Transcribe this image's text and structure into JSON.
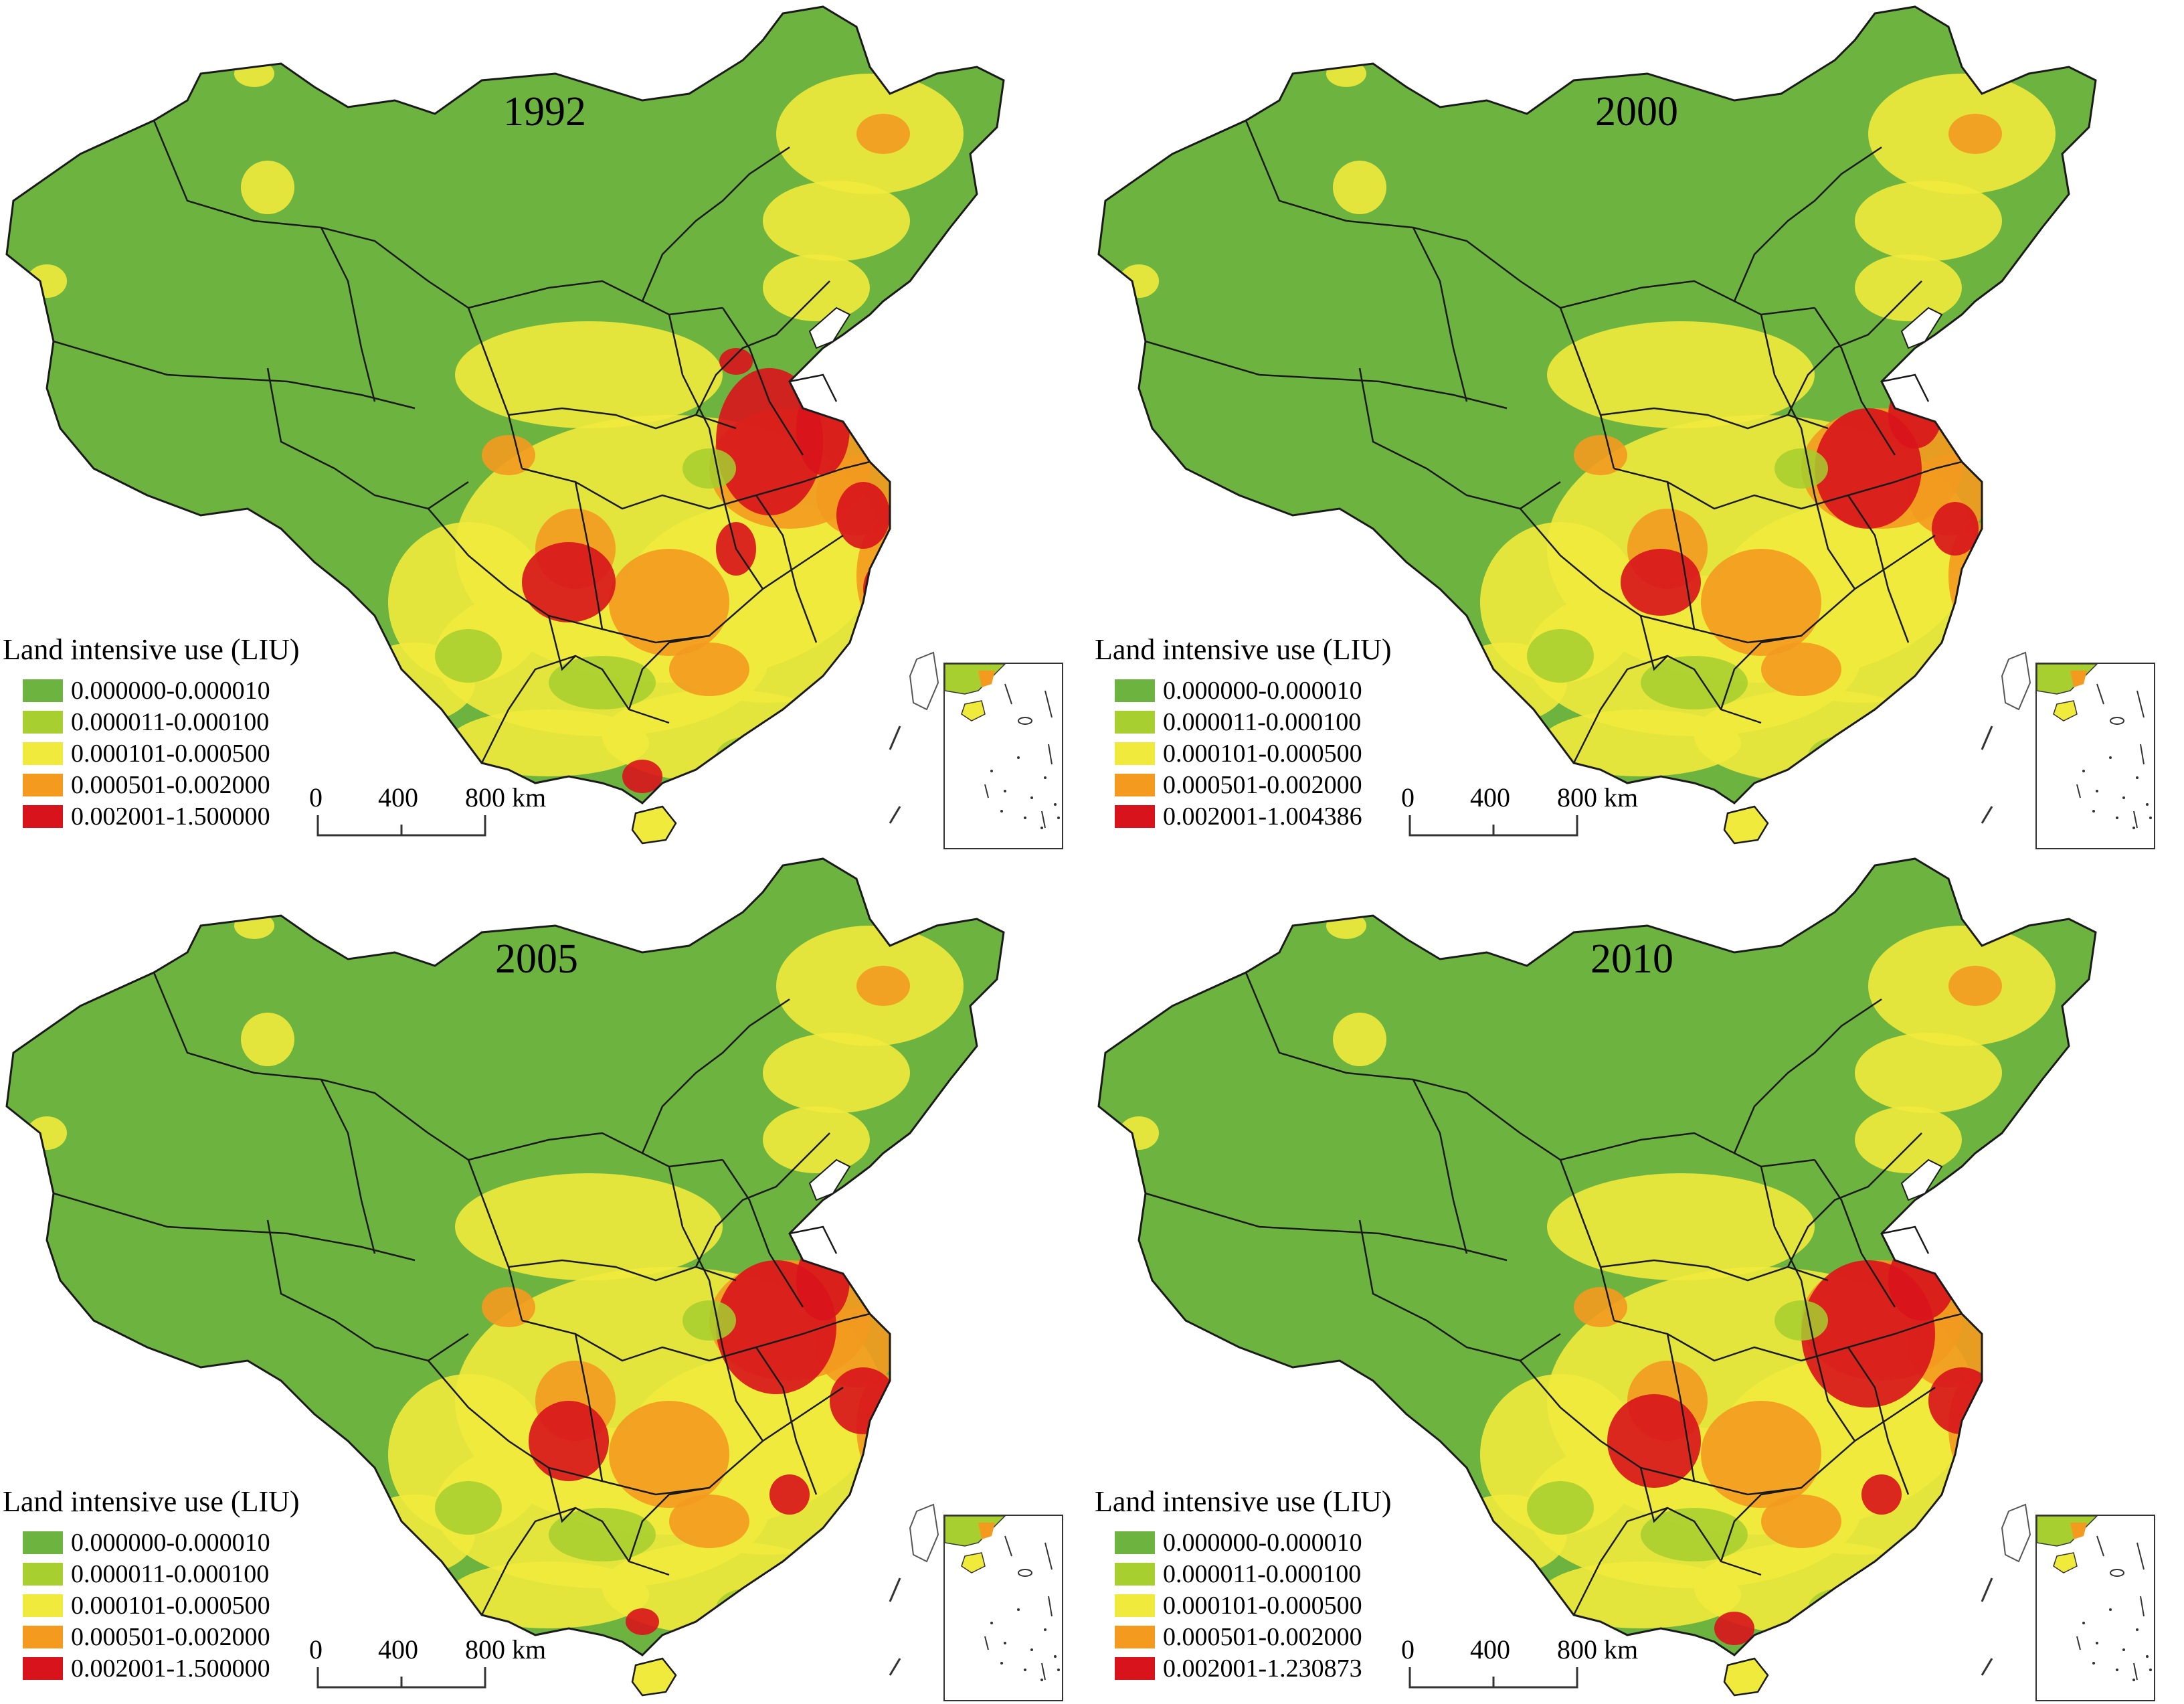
{
  "colors": {
    "class1": "#6db33f",
    "class2": "#a6cf2f",
    "class3": "#f0ea3c",
    "class4": "#f39a1f",
    "class5": "#d8131b",
    "border": "#1a1a1a"
  },
  "legend_title": "Land intensive use (LIU)",
  "scale": {
    "ticks": [
      "0",
      "400",
      "800 km"
    ]
  },
  "panels": [
    {
      "year": "1992",
      "classes": [
        "0.000000-0.000010",
        "0.000011-0.000100",
        "0.000101-0.000500",
        "0.000501-0.002000",
        "0.002001-1.500000"
      ]
    },
    {
      "year": "2000",
      "classes": [
        "0.000000-0.000010",
        "0.000011-0.000100",
        "0.000101-0.000500",
        "0.000501-0.002000",
        "0.002001-1.004386"
      ]
    },
    {
      "year": "2005",
      "classes": [
        "0.000000-0.000010",
        "0.000011-0.000100",
        "0.000101-0.000500",
        "0.000501-0.002000",
        "0.002001-1.500000"
      ]
    },
    {
      "year": "2010",
      "classes": [
        "0.000000-0.000010",
        "0.000011-0.000100",
        "0.000101-0.000500",
        "0.000501-0.002000",
        "0.002001-1.230873"
      ]
    }
  ]
}
